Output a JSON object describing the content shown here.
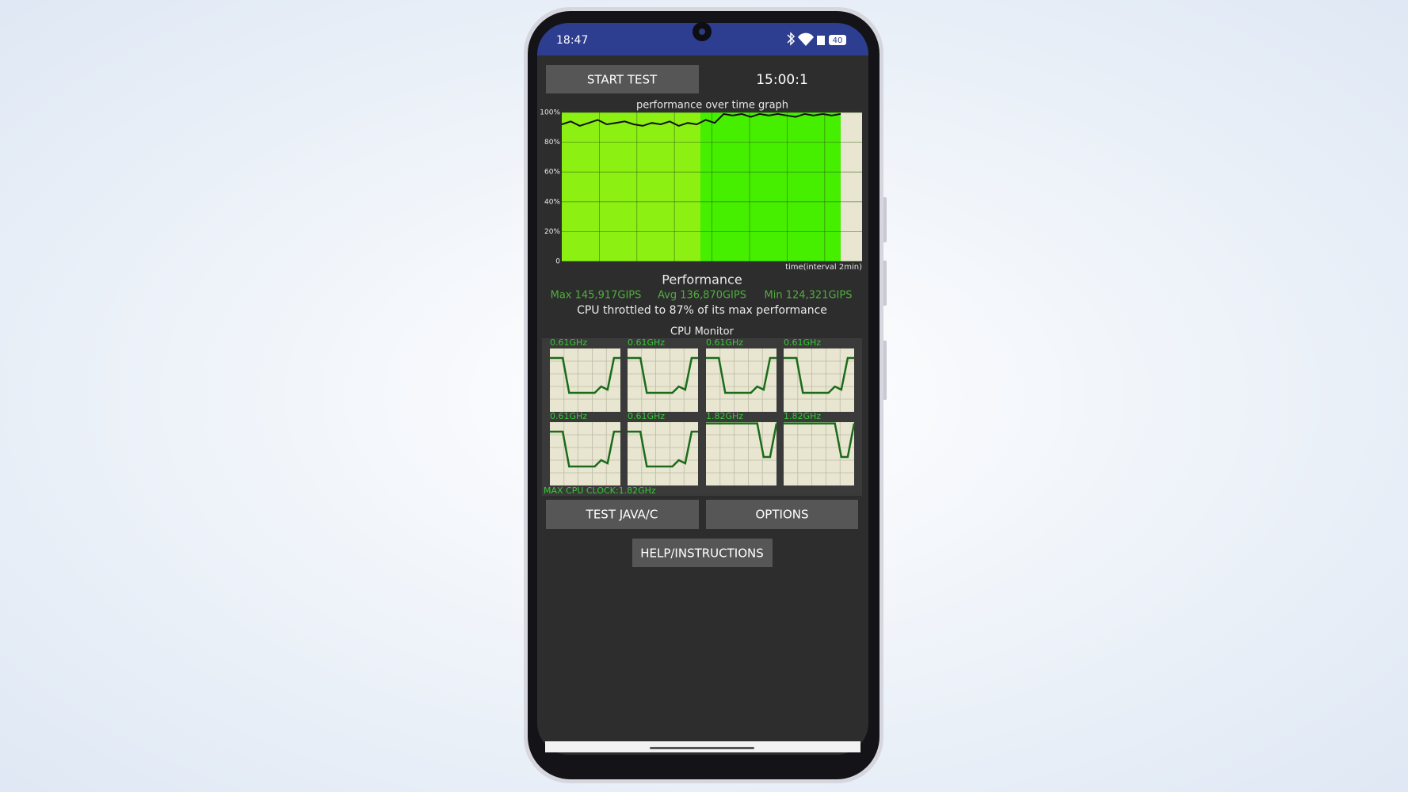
{
  "status_bar": {
    "time": "18:47",
    "battery": "40"
  },
  "buttons": {
    "start_test": "START TEST",
    "test_java_c": "TEST JAVA/C",
    "options": "OPTIONS",
    "help": "HELP/INSTRUCTIONS"
  },
  "timer": "15:00:1",
  "chart_data": {
    "type": "line",
    "title": "performance over time graph",
    "x_label": "time(interval 2min)",
    "ylim": [
      0,
      100
    ],
    "yticks": [
      0,
      {
        "value": 20,
        "label": "20%"
      },
      {
        "value": 40,
        "label": "40%"
      },
      {
        "value": 60,
        "label": "60%"
      },
      {
        "value": 80,
        "label": "80%"
      },
      {
        "value": 100,
        "label": "100%"
      }
    ],
    "values": [
      92,
      94,
      91,
      93,
      95,
      92,
      93,
      94,
      92,
      91,
      93,
      92,
      94,
      91,
      93,
      92,
      95,
      93,
      99,
      98,
      99,
      97,
      99,
      98,
      99,
      98,
      97,
      99,
      98,
      99,
      98,
      99
    ],
    "color": "#111111",
    "grid": true
  },
  "performance": {
    "title": "Performance",
    "max": "Max 145,917GIPS",
    "avg": "Avg 136,870GIPS",
    "min": "Min 124,321GIPS",
    "throttle": "CPU throttled to 87% of its max performance"
  },
  "cpu_monitor": {
    "title": "CPU Monitor",
    "ylim": [
      0,
      100
    ],
    "max_clock": "MAX CPU CLOCK:1.82GHz",
    "cores": [
      {
        "label": "0.61GHz",
        "values": [
          85,
          85,
          85,
          30,
          30,
          30,
          30,
          30,
          40,
          35,
          85,
          85
        ]
      },
      {
        "label": "0.61GHz",
        "values": [
          85,
          85,
          85,
          30,
          30,
          30,
          30,
          30,
          40,
          35,
          85,
          85
        ]
      },
      {
        "label": "0.61GHz",
        "values": [
          85,
          85,
          85,
          30,
          30,
          30,
          30,
          30,
          40,
          35,
          85,
          85
        ]
      },
      {
        "label": "0.61GHz",
        "values": [
          85,
          85,
          85,
          30,
          30,
          30,
          30,
          30,
          40,
          35,
          85,
          85
        ]
      },
      {
        "label": "0.61GHz",
        "values": [
          85,
          85,
          85,
          30,
          30,
          30,
          30,
          30,
          40,
          35,
          85,
          85
        ]
      },
      {
        "label": "0.61GHz",
        "values": [
          85,
          85,
          85,
          30,
          30,
          30,
          30,
          30,
          40,
          35,
          85,
          85
        ]
      },
      {
        "label": "1.82GHz",
        "values": [
          98,
          98,
          98,
          98,
          98,
          98,
          98,
          98,
          98,
          45,
          45,
          98
        ]
      },
      {
        "label": "1.82GHz",
        "values": [
          98,
          98,
          98,
          98,
          98,
          98,
          98,
          98,
          98,
          45,
          45,
          98
        ]
      }
    ]
  }
}
